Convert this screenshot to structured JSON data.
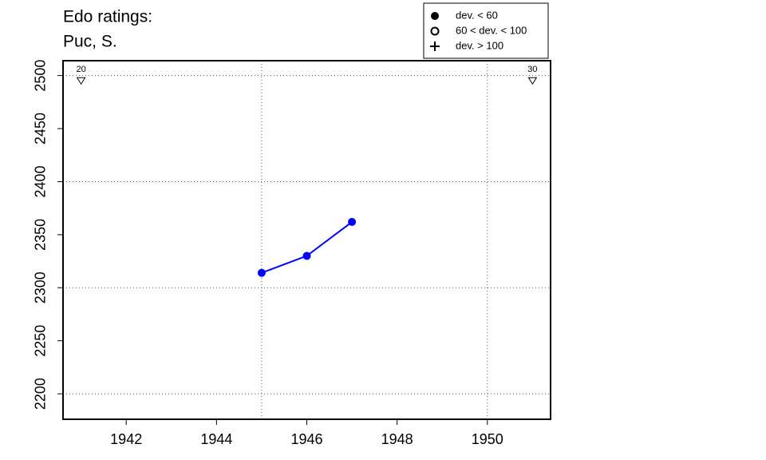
{
  "chart_data": {
    "type": "line",
    "title": "Edo ratings:",
    "subtitle": "Puc, S.",
    "x": [
      1945,
      1946,
      1947
    ],
    "series": [
      {
        "color": "#0000ff",
        "values": [
          2314,
          2330,
          2362
        ]
      }
    ],
    "xlim": [
      1940.6,
      1951.4
    ],
    "ylim": [
      2176,
      2514
    ],
    "xticks": [
      1942,
      1944,
      1946,
      1948,
      1950
    ],
    "yticks": [
      2200,
      2250,
      2300,
      2350,
      2400,
      2450,
      2500
    ],
    "xgrid": [
      1945,
      1950
    ],
    "ygrid": [
      2200,
      2300,
      2400,
      2500
    ],
    "annotations": [
      {
        "x": 1941,
        "y": 2495,
        "label": "20"
      },
      {
        "x": 1951,
        "y": 2495,
        "label": "30"
      }
    ],
    "legend": {
      "position": "top-right",
      "items": [
        {
          "symbol": "filled-circle",
          "label": "dev. < 60"
        },
        {
          "symbol": "open-circle",
          "label": "60 < dev. < 100"
        },
        {
          "symbol": "plus",
          "label": "dev. > 100"
        }
      ]
    }
  }
}
